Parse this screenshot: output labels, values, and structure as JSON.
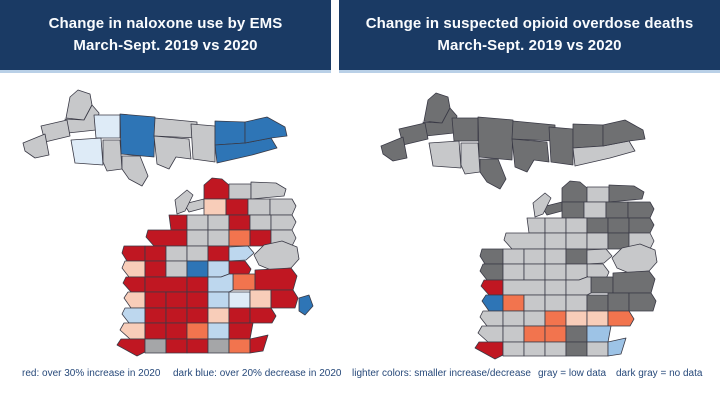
{
  "header": {
    "left": {
      "line1": "Change in naloxone use by EMS",
      "line2": "March-Sept. 2019 vs 2020"
    },
    "right": {
      "line1": "Change in suspected opioid overdose deaths",
      "line2": "March-Sept. 2019 vs 2020"
    },
    "bg_color": "#1A3A64",
    "text_color": "#FAFCFE",
    "divider_color": "#B9D0E7"
  },
  "legend": {
    "text_color": "#27497A",
    "items": [
      {
        "text": "red: over 30% increase in 2020"
      },
      {
        "text": "dark blue: over 20% decrease in 2020"
      },
      {
        "text": "lighter colors: smaller increase/decrease"
      },
      {
        "text": "gray = low data"
      },
      {
        "text": "dark gray = no data"
      }
    ]
  },
  "palette": {
    "red": "#C01722",
    "orange": "#F2744E",
    "cream": "#F8CDB9",
    "blue_med": "#2E75B6",
    "blue_light": "#BDD7EE",
    "blue_pale": "#DEEBF7",
    "blue_sky": "#9DC3E6",
    "gray_light": "#C7C8CA",
    "gray_med": "#A5A6A8",
    "gray_dark": "#6F7072"
  },
  "map_style": {
    "border_color": "#3A3A46"
  },
  "maps": [
    {
      "id": "naloxone",
      "title": "Change in naloxone use by EMS",
      "county_colors": {
        "gogebic": "gray_light",
        "ontonagon": "gray_light",
        "keweenaw": "gray_light",
        "houghton": "gray_light",
        "baraga": "blue_pale",
        "iron": "blue_pale",
        "marquette": "blue_med",
        "dickinson": "gray_light",
        "menominee": "gray_light",
        "alger": "gray_light",
        "delta": "gray_light",
        "schoolcraft": "gray_light",
        "luce": "blue_med",
        "mackinac": "blue_med",
        "chippewa": "blue_med",
        "emmet": "red",
        "cheboygan": "gray_light",
        "presqueisle": "gray_light",
        "charlevoix": "gray_light",
        "antrim": "cream",
        "otsego": "red",
        "montmorency": "gray_light",
        "alpena": "gray_light",
        "leelanau": "gray_light",
        "benzie": "red",
        "grandtraverse": "gray_light",
        "kalkaska": "gray_light",
        "crawford": "red",
        "oscoda": "gray_light",
        "alcona": "gray_light",
        "manistee": "red",
        "wexford": "gray_light",
        "missaukee": "gray_light",
        "roscommon": "orange",
        "ogemaw": "red",
        "iosco": "gray_light",
        "mason": "red",
        "lake": "red",
        "osceola": "gray_light",
        "clare": "gray_light",
        "gladwin": "red",
        "arenac": "blue_light",
        "huron": "gray_light",
        "bay": "red",
        "tuscola": "orange",
        "sanilac": "red",
        "oceana": "cream",
        "newaygo": "red",
        "mecosta": "gray_light",
        "isabella": "blue_med",
        "midland": "blue_light",
        "muskegon": "red",
        "montcalm": "red",
        "gratiot": "red",
        "saginaw": "blue_light",
        "ottawa": "cream",
        "kent": "red",
        "ionia": "red",
        "clinton": "red",
        "shiawassee": "blue_light",
        "genesee": "blue_pale",
        "lapeer": "cream",
        "stclair": "red",
        "stclair_shore": "blue_med",
        "allegan": "blue_light",
        "barry": "red",
        "eaton": "red",
        "ingham": "red",
        "livingston": "cream",
        "oakland": "red",
        "macomb": "red",
        "vanburen": "cream",
        "kalamazoo": "red",
        "calhoun": "red",
        "jackson": "orange",
        "washtenaw": "blue_light",
        "wayne": "red",
        "berrien": "red",
        "cass": "gray_med",
        "stjoseph": "red",
        "branch": "red",
        "hillsdale": "gray_med",
        "lenawee": "orange",
        "monroe": "red"
      }
    },
    {
      "id": "overdose",
      "title": "Change in suspected opioid overdose deaths",
      "county_colors": {
        "gogebic": "gray_dark",
        "ontonagon": "gray_dark",
        "keweenaw": "gray_dark",
        "houghton": "gray_dark",
        "baraga": "gray_dark",
        "iron": "gray_light",
        "marquette": "gray_dark",
        "dickinson": "gray_light",
        "menominee": "gray_dark",
        "alger": "gray_dark",
        "delta": "gray_dark",
        "schoolcraft": "gray_dark",
        "luce": "gray_dark",
        "mackinac": "gray_light",
        "chippewa": "gray_dark",
        "emmet": "gray_dark",
        "cheboygan": "gray_light",
        "presqueisle": "gray_dark",
        "charlevoix": "gray_dark",
        "antrim": "gray_dark",
        "otsego": "gray_light",
        "montmorency": "gray_dark",
        "alpena": "gray_dark",
        "leelanau": "gray_light",
        "benzie": "gray_light",
        "grandtraverse": "gray_light",
        "kalkaska": "gray_light",
        "crawford": "gray_dark",
        "oscoda": "gray_dark",
        "alcona": "gray_dark",
        "manistee": "gray_light",
        "wexford": "gray_light",
        "missaukee": "gray_light",
        "roscommon": "gray_light",
        "ogemaw": "gray_dark",
        "iosco": "gray_light",
        "mason": "gray_dark",
        "lake": "gray_light",
        "osceola": "gray_light",
        "clare": "gray_light",
        "gladwin": "gray_dark",
        "arenac": "gray_light",
        "huron": "gray_light",
        "bay": "gray_light",
        "tuscola": "gray_dark",
        "sanilac": "gray_dark",
        "oceana": "gray_dark",
        "newaygo": "gray_light",
        "mecosta": "gray_light",
        "isabella": "gray_light",
        "midland": "gray_light",
        "muskegon": "red",
        "montcalm": "gray_light",
        "gratiot": "gray_light",
        "saginaw": "gray_light",
        "ottawa": "blue_med",
        "kent": "orange",
        "ionia": "gray_light",
        "clinton": "gray_light",
        "shiawassee": "gray_light",
        "genesee": "gray_dark",
        "lapeer": "gray_dark",
        "stclair": "gray_dark",
        "allegan": "gray_light",
        "barry": "gray_light",
        "eaton": "gray_light",
        "ingham": "orange",
        "livingston": "cream",
        "oakland": "cream",
        "macomb": "orange",
        "vanburen": "gray_light",
        "kalamazoo": "gray_light",
        "calhoun": "orange",
        "jackson": "orange",
        "washtenaw": "gray_dark",
        "wayne": "blue_sky",
        "berrien": "red",
        "cass": "gray_light",
        "stjoseph": "gray_light",
        "branch": "gray_light",
        "hillsdale": "gray_dark",
        "lenawee": "gray_light",
        "monroe": "blue_sky"
      }
    }
  ]
}
